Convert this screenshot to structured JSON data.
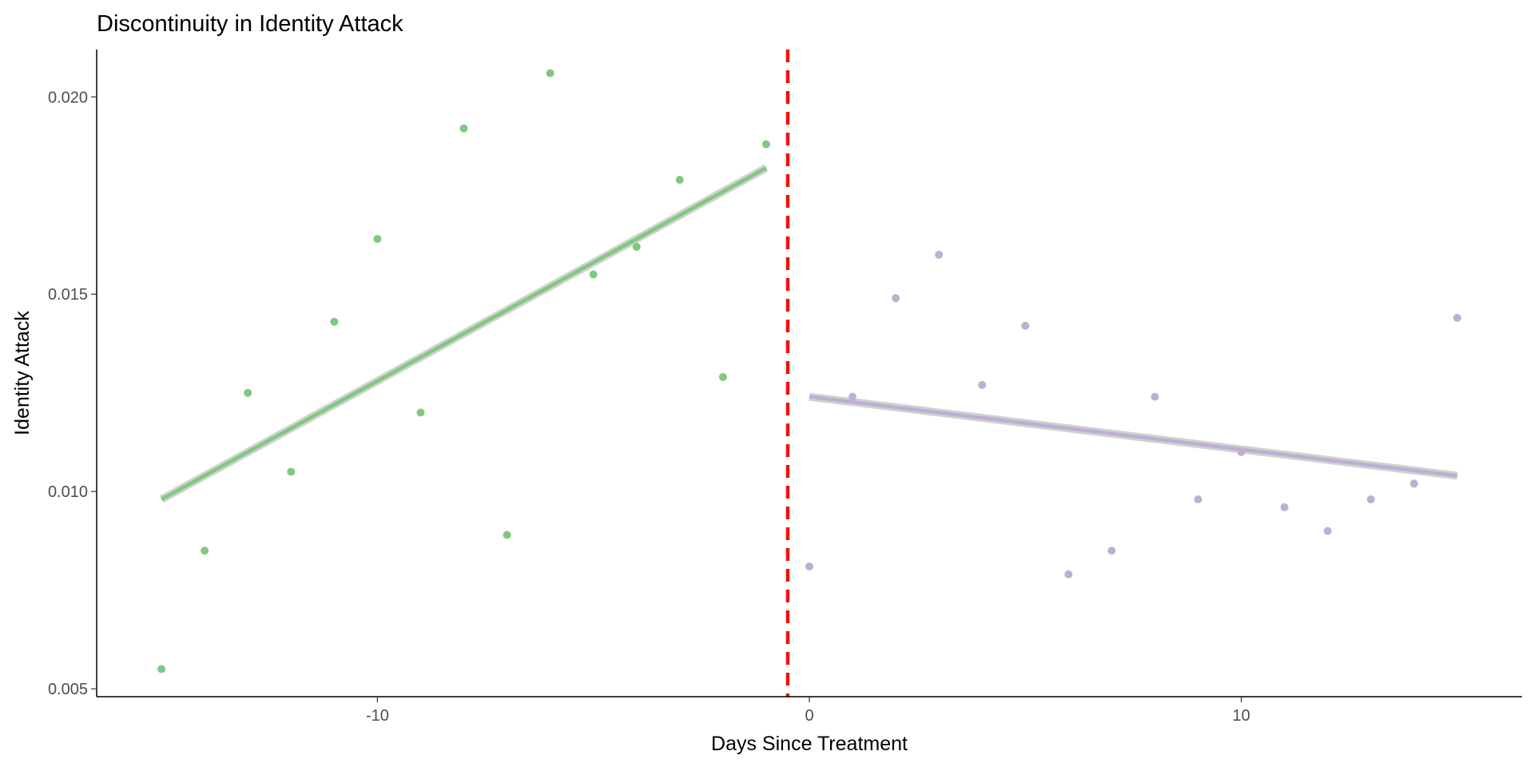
{
  "chart_data": {
    "type": "scatter",
    "title": "Discontinuity in Identity Attack",
    "xlabel": "Days Since Treatment",
    "ylabel": "Identity Attack",
    "xlim": [
      -16.5,
      16.5
    ],
    "ylim": [
      0.0048,
      0.0212
    ],
    "x_ticks": [
      {
        "value": -10,
        "label": "-10"
      },
      {
        "value": 0,
        "label": "0"
      },
      {
        "value": 10,
        "label": "10"
      }
    ],
    "y_ticks": [
      {
        "value": 0.005,
        "label": "0.005"
      },
      {
        "value": 0.01,
        "label": "0.010"
      },
      {
        "value": 0.015,
        "label": "0.015"
      },
      {
        "value": 0.02,
        "label": "0.020"
      }
    ],
    "grid": false,
    "cutoff": {
      "x": -0.5,
      "color": "#ee1111",
      "style": "dashed"
    },
    "series": [
      {
        "color": "#7fc97f",
        "points": [
          {
            "x": -15,
            "y": 0.0055
          },
          {
            "x": -14,
            "y": 0.0085
          },
          {
            "x": -13,
            "y": 0.0125
          },
          {
            "x": -12,
            "y": 0.0105
          },
          {
            "x": -11,
            "y": 0.0143
          },
          {
            "x": -10,
            "y": 0.0164
          },
          {
            "x": -9,
            "y": 0.012
          },
          {
            "x": -8,
            "y": 0.0192
          },
          {
            "x": -7,
            "y": 0.0089
          },
          {
            "x": -6,
            "y": 0.0206
          },
          {
            "x": -5,
            "y": 0.0155
          },
          {
            "x": -4,
            "y": 0.0162
          },
          {
            "x": -3,
            "y": 0.0179
          },
          {
            "x": -2,
            "y": 0.0129
          },
          {
            "x": -1,
            "y": 0.0188
          }
        ],
        "fit": {
          "x": [
            -15,
            -1
          ],
          "y": [
            0.0098,
            0.0182
          ]
        }
      },
      {
        "color": "#beaed4",
        "points": [
          {
            "x": 0,
            "y": 0.0081
          },
          {
            "x": 1,
            "y": 0.0124
          },
          {
            "x": 2,
            "y": 0.0149
          },
          {
            "x": 3,
            "y": 0.016
          },
          {
            "x": 4,
            "y": 0.0127
          },
          {
            "x": 5,
            "y": 0.0142
          },
          {
            "x": 6,
            "y": 0.0079
          },
          {
            "x": 7,
            "y": 0.0085
          },
          {
            "x": 8,
            "y": 0.0124
          },
          {
            "x": 9,
            "y": 0.0098
          },
          {
            "x": 10,
            "y": 0.011
          },
          {
            "x": 11,
            "y": 0.0096
          },
          {
            "x": 12,
            "y": 0.009
          },
          {
            "x": 13,
            "y": 0.0098
          },
          {
            "x": 14,
            "y": 0.0102
          },
          {
            "x": 15,
            "y": 0.0144
          }
        ],
        "fit": {
          "x": [
            0,
            15
          ],
          "y": [
            0.0124,
            0.0104
          ]
        }
      }
    ]
  }
}
